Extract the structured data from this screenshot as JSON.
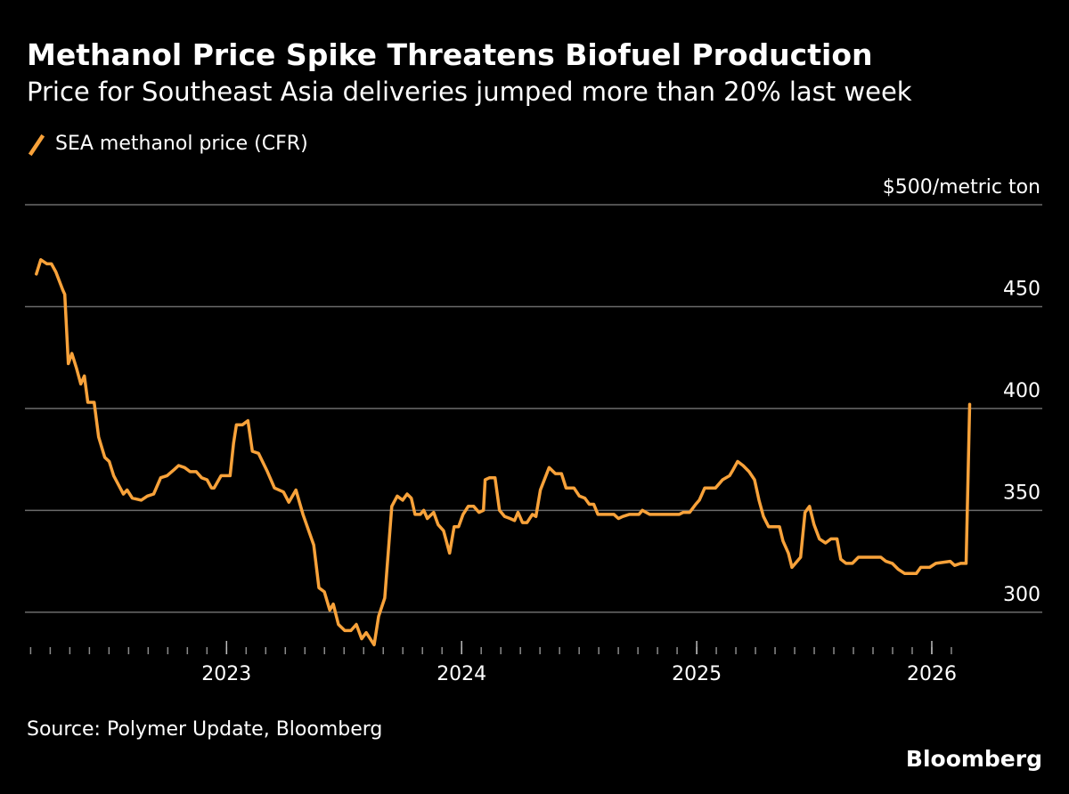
{
  "chart_data": {
    "type": "line",
    "title": "Methanol Price Spike Threatens Biofuel Production",
    "subtitle": "Price for Southeast Asia deliveries jumped more than 20% last week",
    "source": "Source: Polymer Update, Bloomberg",
    "logo": "Bloomberg",
    "x": [
      2022.191,
      2022.21,
      2022.236,
      2022.255,
      2022.274,
      2022.304,
      2022.312,
      2022.327,
      2022.342,
      2022.361,
      2022.38,
      2022.395,
      2022.41,
      2022.437,
      2022.456,
      2022.482,
      2022.501,
      2022.52,
      2022.543,
      2022.561,
      2022.577,
      2022.599,
      2022.637,
      2022.663,
      2022.69,
      2022.72,
      2022.747,
      2022.777,
      2022.796,
      2022.822,
      2022.845,
      2022.871,
      2022.894,
      2022.917,
      2022.936,
      2022.947,
      2022.977,
      2023.015,
      2023.03,
      2023.042,
      2023.068,
      2023.091,
      2023.11,
      2023.136,
      2023.174,
      2023.204,
      2023.242,
      2023.265,
      2023.295,
      2023.325,
      2023.371,
      2023.393,
      2023.416,
      2023.439,
      2023.454,
      2023.476,
      2023.503,
      2023.529,
      2023.552,
      2023.575,
      2023.594,
      2023.628,
      2023.647,
      2023.673,
      2023.703,
      2023.726,
      2023.749,
      2023.768,
      2023.786,
      2023.802,
      2023.824,
      2023.839,
      2023.854,
      2023.881,
      2023.9,
      2023.923,
      2023.949,
      2023.968,
      2023.987,
      2024.006,
      2024.028,
      2024.051,
      2024.074,
      2024.093,
      2024.1,
      2024.119,
      2024.142,
      2024.161,
      2024.183,
      2024.206,
      2024.225,
      2024.24,
      2024.259,
      2024.278,
      2024.301,
      2024.316,
      2024.335,
      2024.372,
      2024.399,
      2024.425,
      2024.444,
      2024.478,
      2024.501,
      2024.524,
      2024.543,
      2024.562,
      2024.58,
      2024.648,
      2024.667,
      2024.686,
      2024.713,
      2024.754,
      2024.769,
      2024.8,
      2024.902,
      2024.925,
      2024.943,
      2024.97,
      2024.996,
      2025.011,
      2025.034,
      2025.064,
      2025.08,
      2025.11,
      2025.14,
      2025.155,
      2025.174,
      2025.197,
      2025.223,
      2025.246,
      2025.265,
      2025.284,
      2025.306,
      2025.352,
      2025.367,
      2025.39,
      2025.405,
      2025.442,
      2025.461,
      2025.48,
      2025.499,
      2025.522,
      2025.548,
      2025.571,
      2025.597,
      2025.613,
      2025.635,
      2025.662,
      2025.688,
      2025.783,
      2025.805,
      2025.832,
      2025.858,
      2025.885,
      2025.934,
      2025.953,
      2025.991,
      2026.017,
      2026.078,
      2026.097,
      2026.123,
      2026.146,
      2026.161
    ],
    "series": [
      {
        "name": "SEA methanol price (CFR)",
        "color": "#f8a23a",
        "values": [
          466,
          473,
          471,
          471,
          467,
          458,
          456,
          422,
          427,
          420,
          412,
          416,
          403,
          403,
          386,
          376,
          374,
          367,
          362,
          358,
          360,
          356,
          355,
          357,
          358,
          366,
          367,
          370,
          372,
          371,
          369,
          369,
          366,
          365,
          361,
          361,
          367,
          367,
          383,
          392,
          392,
          394,
          379,
          378,
          369,
          361,
          359,
          354,
          360,
          348,
          333,
          312,
          310,
          301,
          304,
          294,
          291,
          291,
          294,
          287,
          290,
          284,
          298,
          307,
          352,
          357,
          355,
          358,
          356,
          348,
          348,
          350,
          346,
          349,
          343,
          340,
          329,
          342,
          342,
          348,
          352,
          352,
          349,
          350,
          365,
          366,
          366,
          350,
          347,
          346,
          345,
          349,
          344,
          344,
          348,
          347,
          360,
          371,
          368,
          368,
          361,
          361,
          357,
          356,
          353,
          353,
          348,
          348,
          346,
          347,
          348,
          348,
          350,
          348,
          348,
          348,
          349,
          349,
          353,
          355,
          361,
          361,
          361,
          365,
          367,
          370,
          374,
          372,
          369,
          365,
          355,
          347,
          342,
          342,
          335,
          329,
          322,
          327,
          349,
          352,
          343,
          336,
          334,
          336,
          336,
          326,
          324,
          324,
          327,
          327,
          325,
          324,
          321,
          319,
          319,
          322,
          322,
          324,
          325,
          323,
          324,
          324,
          402
        ]
      }
    ],
    "xlim": [
      2022.15,
      2026.47
    ],
    "ylim": [
      282,
      500
    ],
    "xticks": [
      2023,
      2024,
      2025,
      2026
    ],
    "yticks": [
      {
        "value": 500,
        "label": "$500/metric ton"
      },
      450,
      400,
      350,
      300
    ],
    "grid": true
  }
}
